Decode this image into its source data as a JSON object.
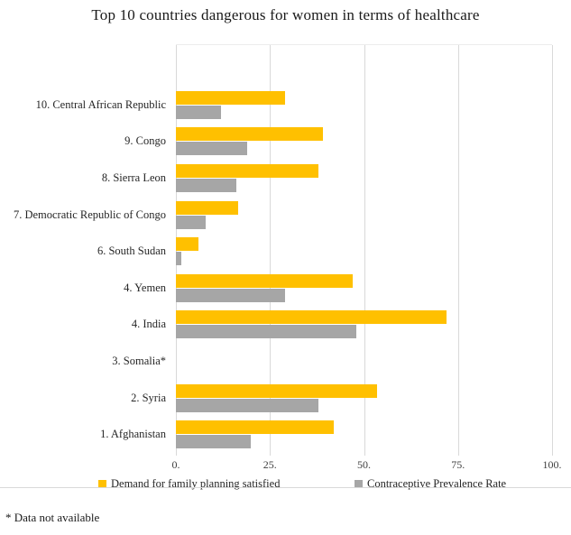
{
  "title": "Top 10 countries dangerous for women in terms of healthcare",
  "footnote": "* Data not available",
  "colors": {
    "series_demand": "#FFC000",
    "series_cpr": "#A6A6A6",
    "gridline": "#D9D9D9",
    "text": "#262626"
  },
  "chart_data": {
    "type": "bar",
    "orientation": "horizontal",
    "title": "Top 10 countries dangerous for women in terms of healthcare",
    "categories": [
      "10. Central African Republic",
      "9. Congo",
      "8. Sierra Leon",
      "7. Democratic Republic of Congo",
      "6. South Sudan",
      "4. Yemen",
      "4. India",
      "3. Somalia*",
      "2. Syria",
      "1. Afghanistan"
    ],
    "series": [
      {
        "name": "Demand for family planning satisfied",
        "color": "#FFC000",
        "values": [
          29,
          39,
          38,
          16.5,
          6,
          47,
          72,
          null,
          53.5,
          42
        ]
      },
      {
        "name": "Contraceptive Prevalence Rate",
        "color": "#A6A6A6",
        "values": [
          12,
          19,
          16,
          8,
          1.5,
          29,
          48,
          null,
          38,
          20
        ]
      }
    ],
    "xlim": [
      0,
      100
    ],
    "x_ticks": [
      0,
      25,
      50,
      75,
      100
    ],
    "x_tick_labels": [
      "0.",
      "25.",
      "50.",
      "75.",
      "100."
    ],
    "grid": "vertical",
    "legend_position": "bottom",
    "annotation": "* Data not available (Somalia has no bars)"
  }
}
